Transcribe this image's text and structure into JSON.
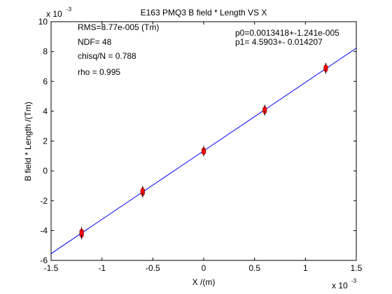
{
  "chart_data": {
    "type": "scatter",
    "title": "E163 PMQ3 B field * Length VS X",
    "xlabel": "X /(m)",
    "ylabel": "B field * Length /(Tm)",
    "x_multiplier": "x 10",
    "x_multiplier_exp": "-3",
    "y_multiplier": "x 10",
    "y_multiplier_exp": "-3",
    "xlim": [
      -1.5,
      1.5
    ],
    "ylim": [
      -6,
      10
    ],
    "x_ticks": [
      -1.5,
      -1,
      -0.5,
      0,
      0.5,
      1,
      1.5
    ],
    "x_tick_labels": [
      "-1.5",
      "-1",
      "-0.5",
      "0",
      "0.5",
      "1",
      "1.5"
    ],
    "y_ticks": [
      -6,
      -4,
      -2,
      0,
      2,
      4,
      6,
      8,
      10
    ],
    "y_tick_labels": [
      "-6",
      "-4",
      "-2",
      "0",
      "2",
      "4",
      "6",
      "8",
      "10"
    ],
    "grid": false,
    "legend": "none",
    "series": [
      {
        "marker_color": "#ff0000",
        "x": [
          -1.2,
          -1.2,
          -1.2,
          -1.2,
          -1.2,
          -1.2,
          -1.2,
          -1.2,
          -1.2,
          -1.2,
          -0.6,
          -0.6,
          -0.6,
          -0.6,
          -0.6,
          -0.6,
          -0.6,
          -0.6,
          -0.6,
          -0.6,
          0,
          0,
          0,
          0,
          0,
          0,
          0,
          0,
          0,
          0,
          0.6,
          0.6,
          0.6,
          0.6,
          0.6,
          0.6,
          0.6,
          0.6,
          0.6,
          0.6,
          1.2,
          1.2,
          1.2,
          1.2,
          1.2,
          1.2,
          1.2,
          1.2,
          1.2,
          1.2
        ],
        "y": [
          -4.35,
          -4.3,
          -4.25,
          -4.2,
          -4.15,
          -4.1,
          -4.05,
          -4.0,
          -4.2,
          -4.15,
          -1.55,
          -1.5,
          -1.45,
          -1.4,
          -1.35,
          -1.3,
          -1.25,
          -1.45,
          -1.4,
          -1.35,
          1.2,
          1.25,
          1.3,
          1.35,
          1.4,
          1.45,
          1.3,
          1.35,
          1.4,
          1.3,
          3.95,
          4.0,
          4.05,
          4.1,
          4.15,
          4.2,
          4.05,
          4.1,
          4.0,
          4.15,
          6.75,
          6.8,
          6.85,
          6.9,
          6.95,
          7.0,
          6.85,
          6.9,
          6.8,
          6.95
        ]
      }
    ],
    "fit_line": {
      "color": "#0000ff",
      "intercept": 1.3418,
      "slope": 4.5903
    },
    "annotations": {
      "rms": "RMS=8.77e-005 (Tm)",
      "ndf": "NDF=   48",
      "chisq": "chisq/N = 0.788",
      "rho": "rho     =  0.995",
      "p0": "p0=0.0013418+-1.241e-005",
      "p1": "p1=   4.5903+- 0.014207"
    }
  }
}
